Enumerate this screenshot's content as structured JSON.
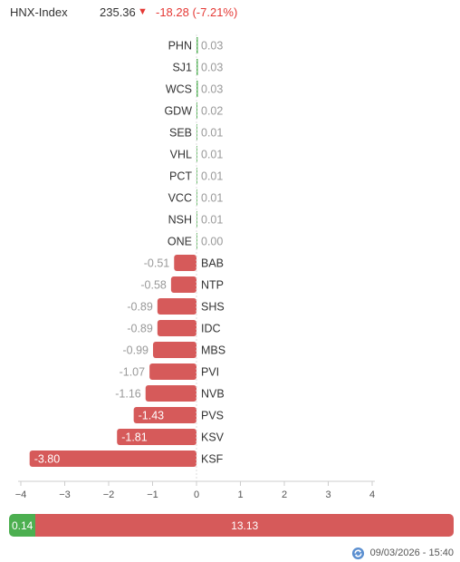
{
  "header": {
    "index_name": "HNX-Index",
    "index_value": "235.36",
    "change_arrow": "▼",
    "change_text": "-18.28 (-7.21%)"
  },
  "colors": {
    "positive": "#4caf50",
    "negative": "#d65a5a",
    "change_text": "#e53935",
    "zero_tick": "#4caf50"
  },
  "chart_data": {
    "type": "bar",
    "orientation": "horizontal",
    "categories": [
      "PHN",
      "SJ1",
      "WCS",
      "GDW",
      "SEB",
      "VHL",
      "PCT",
      "VCC",
      "NSH",
      "ONE",
      "BAB",
      "NTP",
      "SHS",
      "IDC",
      "MBS",
      "PVI",
      "NVB",
      "PVS",
      "KSV",
      "KSF"
    ],
    "values": [
      0.03,
      0.03,
      0.03,
      0.02,
      0.01,
      0.01,
      0.01,
      0.01,
      0.01,
      0.0,
      -0.51,
      -0.58,
      -0.89,
      -0.89,
      -0.99,
      -1.07,
      -1.16,
      -1.43,
      -1.81,
      -3.8
    ],
    "value_labels": [
      "0.03",
      "0.03",
      "0.03",
      "0.02",
      "0.01",
      "0.01",
      "0.01",
      "0.01",
      "0.01",
      "0.00",
      "-0.51",
      "-0.58",
      "-0.89",
      "-0.89",
      "-0.99",
      "-1.07",
      "-1.16",
      "-1.43",
      "-1.81",
      "-3.80"
    ],
    "xlim": [
      -4,
      4
    ],
    "xticks": [
      -4,
      -3,
      -2,
      -1,
      0,
      1,
      2,
      3,
      4
    ],
    "xtick_labels": [
      "−4",
      "−3",
      "−2",
      "−1",
      "0",
      "1",
      "2",
      "3",
      "4"
    ],
    "grid": false,
    "legend": "none"
  },
  "summary": {
    "positive_total": 0.14,
    "negative_total": 13.13,
    "positive_label": "0.14",
    "negative_label": "13.13"
  },
  "footer": {
    "icon": "refresh-icon",
    "timestamp": "09/03/2026 - 15:40"
  }
}
